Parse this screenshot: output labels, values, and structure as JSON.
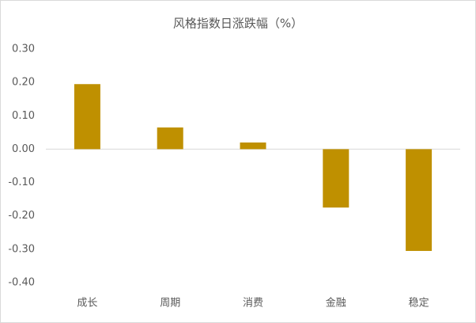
{
  "chart_data": {
    "type": "bar",
    "title": "风格指数日涨跌幅（%）",
    "categories": [
      "成长",
      "周期",
      "消费",
      "金融",
      "稳定"
    ],
    "values": [
      0.195,
      0.065,
      0.02,
      -0.175,
      -0.305
    ],
    "color": "#bf9000",
    "ylim": [
      -0.4,
      0.3
    ],
    "yticks": [
      {
        "value": 0.3,
        "label": "0.30"
      },
      {
        "value": 0.2,
        "label": "0.20"
      },
      {
        "value": 0.1,
        "label": "0.10"
      },
      {
        "value": 0,
        "label": "0.00"
      },
      {
        "value": -0.1,
        "label": "-0.10"
      },
      {
        "value": -0.2,
        "label": "-0.20"
      },
      {
        "value": -0.3,
        "label": "-0.30"
      },
      {
        "value": -0.4,
        "label": "-0.40"
      }
    ],
    "grid": false
  }
}
